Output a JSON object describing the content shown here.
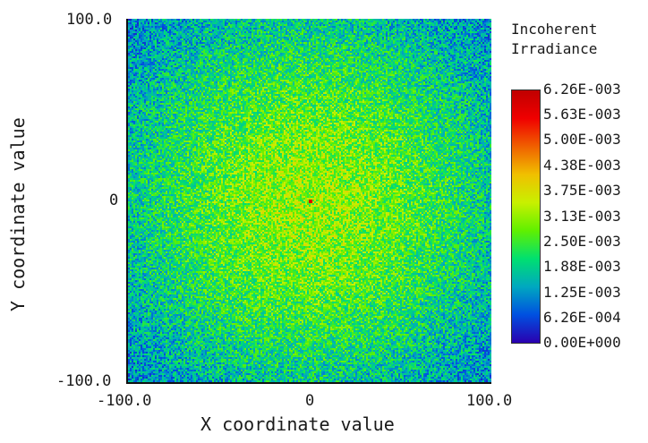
{
  "chart_data": {
    "type": "heatmap",
    "title": "",
    "xlabel": "X coordinate value",
    "ylabel": "Y coordinate value",
    "xlim": [
      -100.0,
      100.0
    ],
    "ylim": [
      -100.0,
      100.0
    ],
    "x_tick_labels": [
      "-100.0",
      "0",
      "100.0"
    ],
    "y_tick_labels": [
      "100.0",
      "0",
      "-100.0"
    ],
    "grid": false,
    "description": "Noisy 2D Gaussian-like irradiance distribution centered at (0,0); peak (red pixel) at center ~6.26E-003, falling to blue near edges",
    "peak": {
      "x": 0,
      "y": 0,
      "value": 0.00626
    },
    "colorbar": {
      "title": "Incoherent Irradiance",
      "min": 0.0,
      "max": 0.00626,
      "tick_labels": [
        "6.26E-003",
        "5.63E-003",
        "5.00E-003",
        "4.38E-003",
        "3.75E-003",
        "3.13E-003",
        "2.50E-003",
        "1.88E-003",
        "1.25E-003",
        "6.26E-004",
        "0.00E+000"
      ],
      "colormap": [
        "#2a00b0",
        "#0050e0",
        "#00a8c0",
        "#00e070",
        "#60f000",
        "#c8f000",
        "#f0c000",
        "#f06000",
        "#f00000",
        "#c00000"
      ]
    }
  },
  "legend": {
    "title_line1": "Incoherent",
    "title_line2": "Irradiance"
  }
}
